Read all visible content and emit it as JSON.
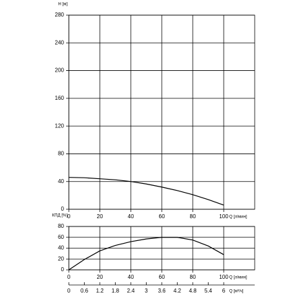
{
  "chart_data": [
    {
      "type": "line",
      "y_label": "H [м]",
      "x_label": "Q [л/мин]",
      "x": [
        0,
        10,
        20,
        30,
        40,
        50,
        60,
        70,
        80,
        90,
        100
      ],
      "series": [
        {
          "color": "#000000",
          "values": [
            46,
            45.5,
            44,
            42.5,
            40,
            36.5,
            32,
            27,
            21,
            14,
            6
          ]
        }
      ],
      "xlim": [
        0,
        120
      ],
      "xticks": [
        0,
        20,
        40,
        60,
        80,
        100
      ],
      "ylim": [
        0,
        280
      ],
      "yticks": [
        0,
        40,
        80,
        120,
        160,
        200,
        240,
        280
      ],
      "grid": true
    },
    {
      "type": "line",
      "y_label": "КПД [%]",
      "x_label": "Q [л/мин]",
      "x": [
        0,
        10,
        20,
        30,
        40,
        50,
        60,
        70,
        80,
        90,
        100
      ],
      "series": [
        {
          "color": "#000000",
          "values": [
            0,
            19,
            35,
            45,
            52,
            57,
            60,
            60,
            55,
            44,
            28
          ]
        }
      ],
      "xlim": [
        0,
        120
      ],
      "xticks": [
        0,
        20,
        40,
        60,
        80,
        100
      ],
      "ylim": [
        0,
        80
      ],
      "yticks": [
        0,
        20,
        40,
        60,
        80
      ],
      "grid": true,
      "x2_label": "Q [м³/ч]",
      "x2lim": [
        0,
        7.2
      ],
      "x2ticks": [
        0,
        0.6,
        1.2,
        1.8,
        2.4,
        3,
        3.6,
        4.2,
        4.8,
        5.4,
        6
      ]
    }
  ]
}
